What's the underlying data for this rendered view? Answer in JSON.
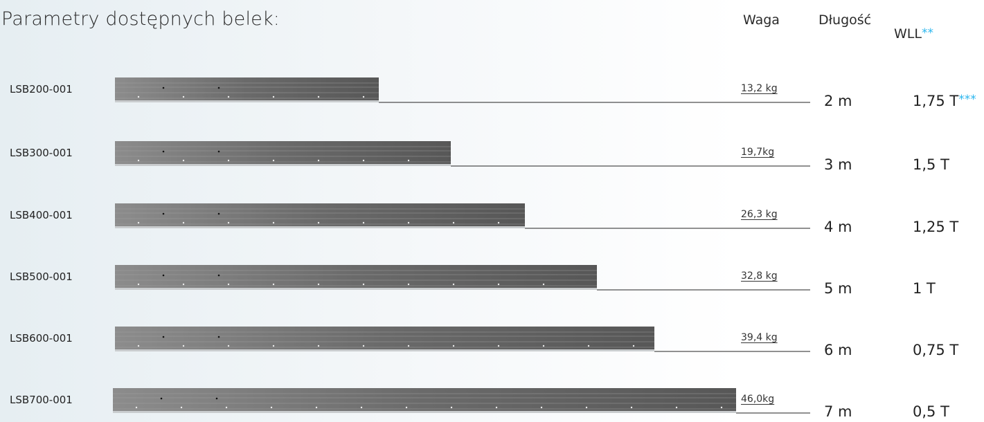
{
  "header": {
    "title": "Parametry dostępnych belek:",
    "columns": {
      "weight": "Waga",
      "length": "Długość",
      "wll": "WLL",
      "wll_note": "**"
    }
  },
  "rows": [
    {
      "code": "LSB200-001",
      "weight": "13,2 kg",
      "length": "2 m",
      "wll": "1,75 T",
      "wll_note": "***"
    },
    {
      "code": "LSB300-001",
      "weight": "19,7kg",
      "length": "3 m",
      "wll": "1,5 T"
    },
    {
      "code": "LSB400-001",
      "weight": "26,3 kg",
      "length": "4 m",
      "wll": "1,25 T"
    },
    {
      "code": "LSB500-001",
      "weight": "32,8 kg",
      "length": "5 m",
      "wll": "1 T"
    },
    {
      "code": "LSB600-001",
      "weight": "39,4 kg",
      "length": "6 m",
      "wll": "0,75 T"
    },
    {
      "code": "LSB700-001",
      "weight": "46,0kg",
      "length": "7 m",
      "wll": "0,5 T"
    }
  ]
}
